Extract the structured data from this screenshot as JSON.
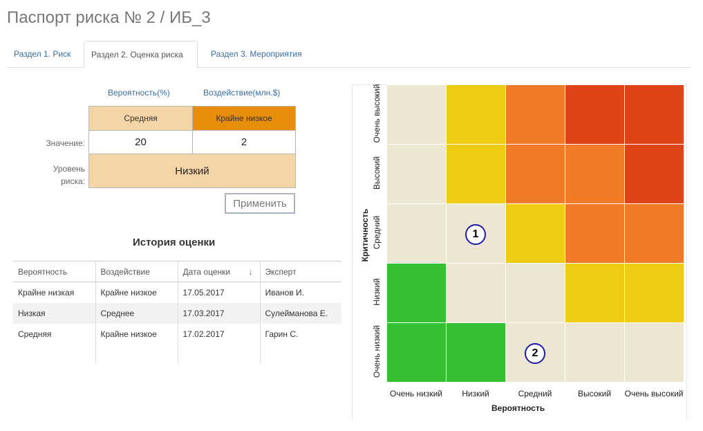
{
  "page": {
    "title": "Паспорт риска № 2 / ИБ_3"
  },
  "tabs": [
    {
      "label": "Раздел 1. Риск"
    },
    {
      "label": "Раздел 2. Оценка риска"
    },
    {
      "label": "Раздел 3. Мероприятия"
    }
  ],
  "assessment": {
    "probability_header": "Вероятность(%)",
    "impact_header": "Воздействие(млн.$)",
    "probability_level": "Средняя",
    "impact_level": "Крайне низкое",
    "value_label": "Значение:",
    "probability_value": "20",
    "impact_value": "2",
    "risk_level_label_1": "Уровень",
    "risk_level_label_2": "риска:",
    "risk_level": "Низкий",
    "apply_button": "Применить",
    "colors": {
      "probability_bg": "#f4d5a8",
      "impact_bg": "#e88c0c",
      "risk_bg": "#f4d5a8"
    }
  },
  "history": {
    "title": "История оценки",
    "columns": [
      "Вероятность",
      "Воздействие",
      "Дата оценки",
      "Эксперт"
    ],
    "sort_icon": "arrow-down-icon",
    "rows": [
      [
        "Крайне низкая",
        "Крайне низкое",
        "17.05.2017",
        "Иванов И."
      ],
      [
        "Низкая",
        "Среднее",
        "17.03.2017",
        "Сулейманова Е."
      ],
      [
        "Средняя",
        "Крайне низкое",
        "17.02.2017",
        "Гарин С."
      ]
    ]
  },
  "matrix": {
    "y_axis_title": "Критичность",
    "x_axis_title": "Вероятность",
    "y_labels": [
      "Очень высокий",
      "Высокий",
      "Средний",
      "Низкий",
      "Очень низкий"
    ],
    "x_labels": [
      "Очень низкий",
      "Низкий",
      "Средний",
      "Высокий",
      "Очень высокий"
    ],
    "palette": {
      "beige": "#ece6d3",
      "yellow": "#efcc14",
      "orange": "#ef7a28",
      "red": "#de4417",
      "green": "#35c034"
    },
    "grid": [
      [
        "beige",
        "yellow",
        "orange",
        "red",
        "red"
      ],
      [
        "beige",
        "yellow",
        "orange",
        "orange",
        "red"
      ],
      [
        "beige",
        "beige",
        "yellow",
        "orange",
        "orange"
      ],
      [
        "green",
        "beige",
        "beige",
        "yellow",
        "yellow"
      ],
      [
        "green",
        "green",
        "beige",
        "beige",
        "beige"
      ]
    ],
    "markers": [
      {
        "label": "1",
        "row": 2,
        "col": 1
      },
      {
        "label": "2",
        "row": 4,
        "col": 2
      }
    ]
  }
}
